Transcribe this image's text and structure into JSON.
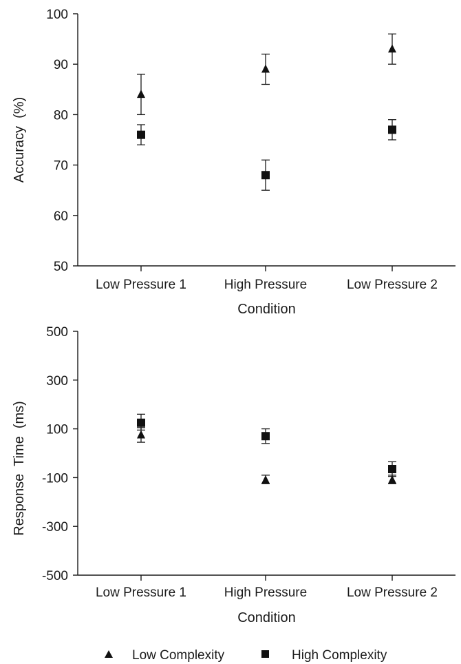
{
  "chart_data": [
    {
      "type": "scatter",
      "xlabel": "Condition",
      "ylabel": "Accuracy  (%)",
      "categories": [
        "Low Pressure 1",
        "High Pressure",
        "Low Pressure 2"
      ],
      "ylim": [
        50,
        100
      ],
      "yticks": [
        50,
        60,
        70,
        80,
        90,
        100
      ],
      "series": [
        {
          "name": "Low Complexity",
          "marker": "triangle",
          "values": [
            84,
            89,
            93
          ],
          "error_low": [
            80,
            86,
            90
          ],
          "error_high": [
            88,
            92,
            96
          ]
        },
        {
          "name": "High Complexity",
          "marker": "square",
          "values": [
            76,
            68,
            77
          ],
          "error_low": [
            74,
            65,
            75
          ],
          "error_high": [
            78,
            71,
            79
          ]
        }
      ],
      "grid": false
    },
    {
      "type": "scatter",
      "xlabel": "Condition",
      "ylabel": "Response  Time  (ms)",
      "categories": [
        "Low Pressure 1",
        "High Pressure",
        "Low Pressure 2"
      ],
      "ylim": [
        -500,
        500
      ],
      "yticks": [
        -500,
        -300,
        -100,
        100,
        300,
        500
      ],
      "series": [
        {
          "name": "Low Complexity",
          "marker": "triangle",
          "values": [
            75,
            -110,
            -110
          ],
          "error_low": [
            45,
            -125,
            -125
          ],
          "error_high": [
            105,
            -90,
            -90
          ]
        },
        {
          "name": "High Complexity",
          "marker": "square",
          "values": [
            125,
            70,
            -65
          ],
          "error_low": [
            95,
            40,
            -95
          ],
          "error_high": [
            160,
            100,
            -35
          ]
        }
      ],
      "grid": false
    }
  ],
  "legend": {
    "placement": "bottom-center",
    "items": [
      {
        "label": "Low Complexity",
        "marker": "triangle"
      },
      {
        "label": "High Complexity",
        "marker": "square"
      }
    ]
  }
}
